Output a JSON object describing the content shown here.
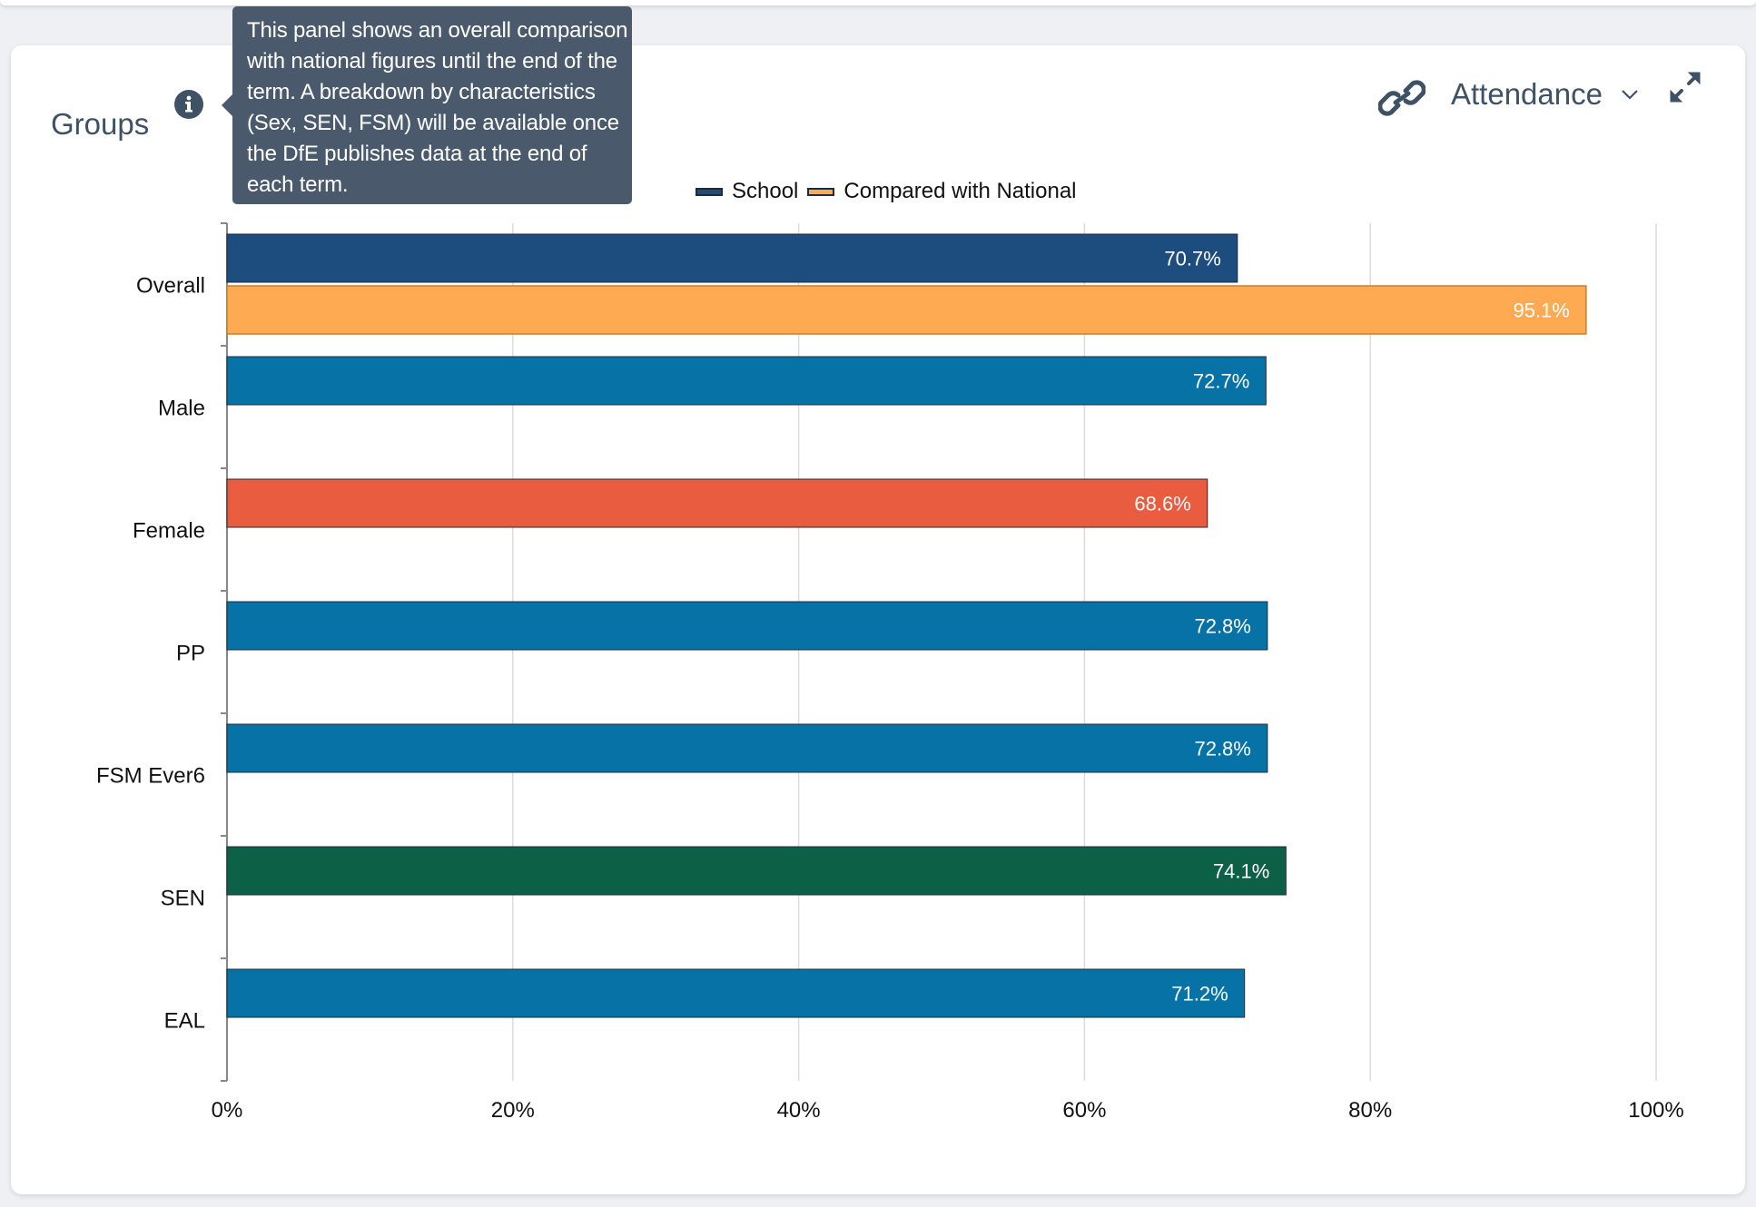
{
  "panel": {
    "title": "Groups",
    "tooltip": "This panel shows an overall comparison with national figures until the end of the term. A breakdown by characteristics (Sex, SEN, FSM) will be available once the DfE publishes data at the end of each term.",
    "metric_select": "Attendance"
  },
  "icons": {
    "info": "info-icon",
    "link": "link-icon",
    "caret": "chevron-down-icon",
    "expand": "expand-icon"
  },
  "legend": {
    "school_label": "School",
    "national_label": "Compared with National",
    "school_color": "#1d4d7e",
    "national_color": "#fdaa52"
  },
  "chart_data": {
    "type": "bar",
    "orientation": "horizontal",
    "title": "",
    "xlabel": "",
    "ylabel": "",
    "xlim": [
      0,
      100
    ],
    "x_ticks": [
      "0%",
      "20%",
      "40%",
      "60%",
      "80%",
      "100%"
    ],
    "grid": true,
    "legend_position": "top-center",
    "categories": [
      "Overall",
      "Male",
      "Female",
      "PP",
      "FSM Ever6",
      "SEN",
      "EAL"
    ],
    "series": [
      {
        "name": "School",
        "values": [
          70.7,
          72.7,
          68.6,
          72.8,
          72.8,
          74.1,
          71.2
        ],
        "labels": [
          "70.7%",
          "72.7%",
          "68.6%",
          "72.8%",
          "72.8%",
          "74.1%",
          "71.2%"
        ],
        "colors": [
          "#1d4d7e",
          "#0672a5",
          "#ea5c3f",
          "#0672a5",
          "#0672a5",
          "#0b6045",
          "#0672a5"
        ]
      },
      {
        "name": "Compared with National",
        "values": [
          95.1,
          null,
          null,
          null,
          null,
          null,
          null
        ],
        "labels": [
          "95.1%",
          "",
          "",
          "",
          "",
          "",
          ""
        ],
        "colors": [
          "#fdaa52",
          null,
          null,
          null,
          null,
          null,
          null
        ]
      }
    ]
  }
}
